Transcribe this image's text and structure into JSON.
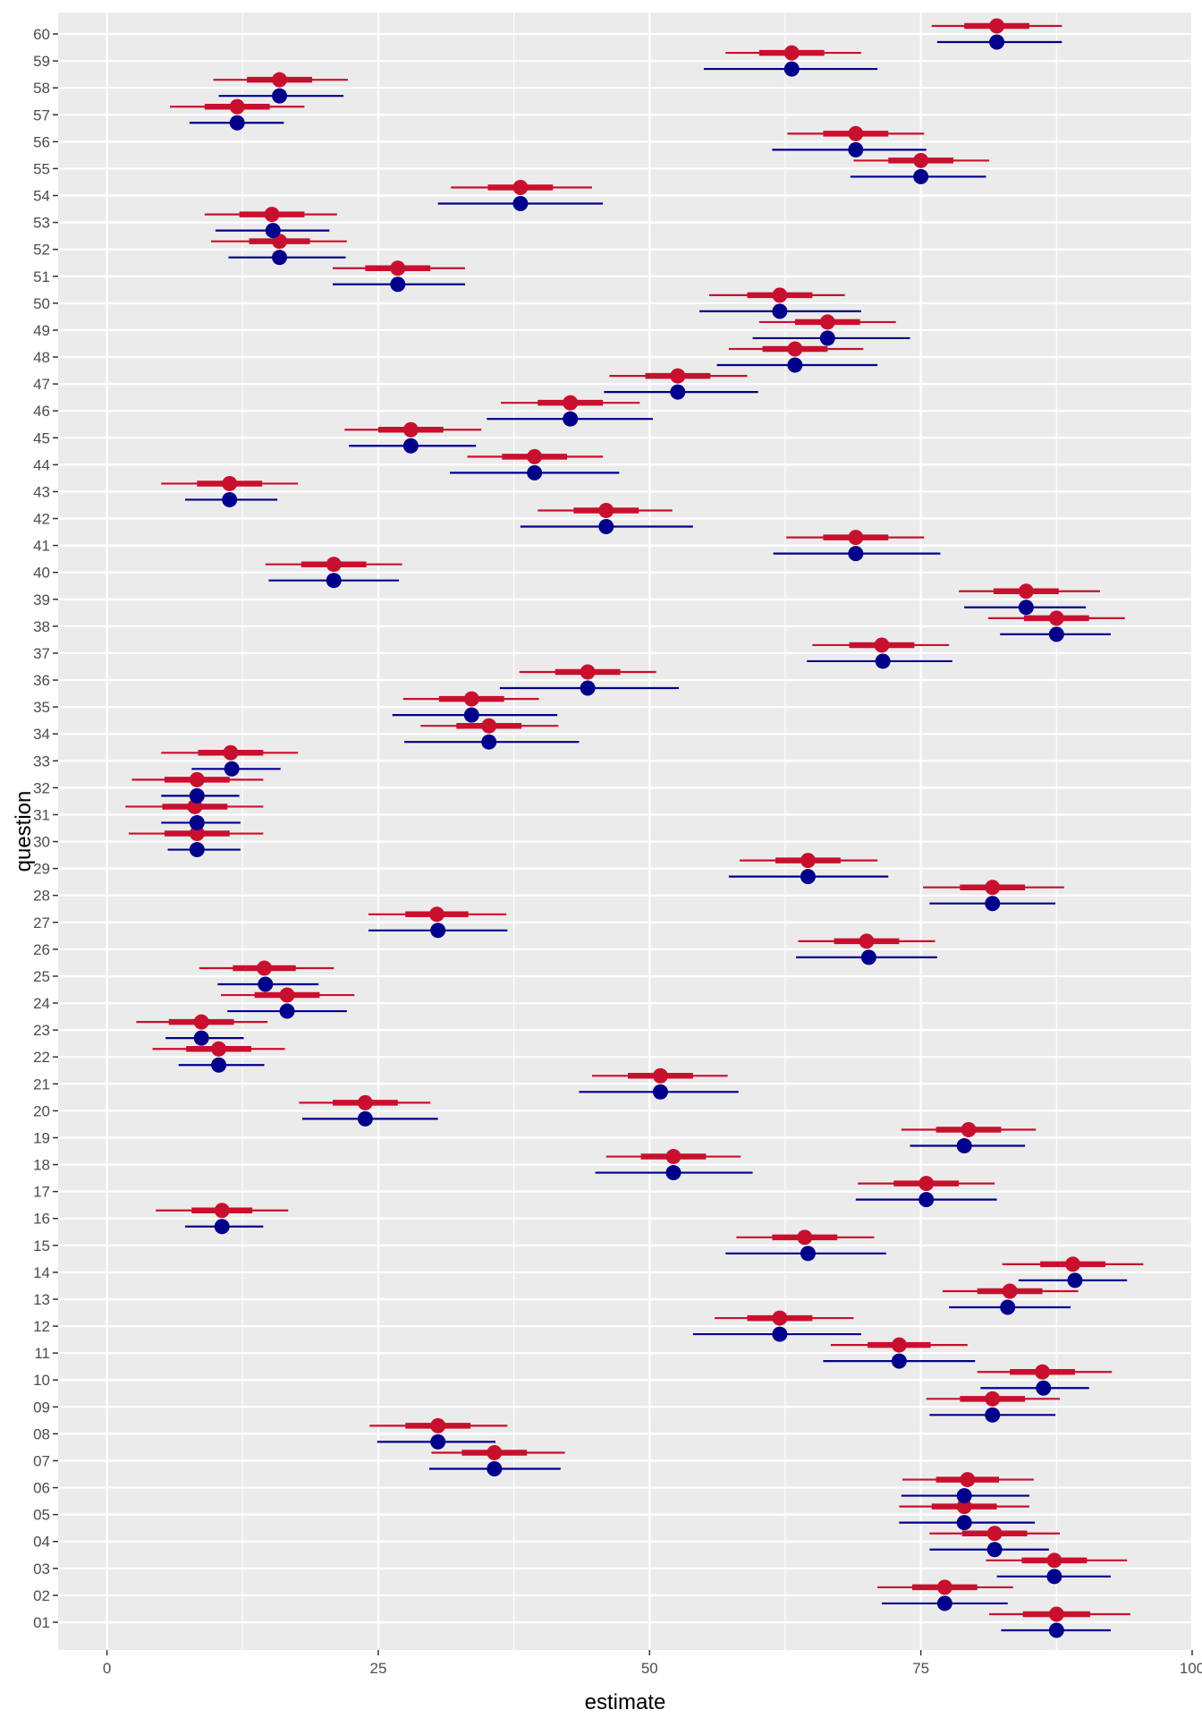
{
  "chart_data": {
    "type": "scatter",
    "title": "",
    "xlabel": "estimate",
    "ylabel": "question",
    "xlim": [
      -4.5,
      100
    ],
    "x_ticks": [
      0,
      25,
      50,
      75,
      100
    ],
    "grid": true,
    "legend": "none",
    "categories": [
      "01",
      "02",
      "03",
      "04",
      "05",
      "06",
      "07",
      "08",
      "09",
      "10",
      "11",
      "12",
      "13",
      "14",
      "15",
      "16",
      "17",
      "18",
      "19",
      "20",
      "21",
      "22",
      "23",
      "24",
      "25",
      "26",
      "27",
      "28",
      "29",
      "30",
      "31",
      "32",
      "33",
      "34",
      "35",
      "36",
      "37",
      "38",
      "39",
      "40",
      "41",
      "42",
      "43",
      "44",
      "45",
      "46",
      "47",
      "48",
      "49",
      "50",
      "51",
      "52",
      "53",
      "54",
      "55",
      "56",
      "57",
      "58",
      "59",
      "60"
    ],
    "series": [
      {
        "color": "#c8102e",
        "estimates": [
          87.5,
          77.2,
          87.3,
          81.8,
          79.0,
          79.3,
          35.7,
          30.5,
          81.6,
          86.2,
          73.0,
          62.0,
          83.2,
          89.0,
          64.3,
          10.6,
          75.5,
          52.2,
          79.4,
          23.8,
          51.0,
          10.3,
          8.7,
          16.6,
          14.5,
          70.0,
          30.4,
          81.6,
          64.6,
          8.3,
          8.1,
          8.3,
          11.4,
          35.2,
          33.6,
          44.3,
          71.4,
          87.5,
          84.7,
          20.9,
          69.0,
          46.0,
          11.3,
          39.4,
          28.0,
          42.7,
          52.6,
          63.4,
          66.4,
          62.0,
          26.8,
          15.9,
          15.2,
          38.1,
          75.0,
          69.0,
          12.0,
          15.9,
          63.1,
          82.0
        ],
        "inner": [
          [
            84.4,
            90.6
          ],
          [
            74.2,
            80.2
          ],
          [
            84.3,
            90.3
          ],
          [
            78.8,
            84.8
          ],
          [
            76.0,
            82.0
          ],
          [
            76.4,
            82.2
          ],
          [
            32.7,
            38.7
          ],
          [
            27.5,
            33.5
          ],
          [
            78.6,
            84.6
          ],
          [
            83.2,
            89.2
          ],
          [
            70.1,
            75.9
          ],
          [
            59.0,
            65.0
          ],
          [
            80.2,
            86.2
          ],
          [
            86.0,
            92.0
          ],
          [
            61.3,
            67.3
          ],
          [
            7.8,
            13.4
          ],
          [
            72.5,
            78.5
          ],
          [
            49.2,
            55.2
          ],
          [
            76.4,
            82.4
          ],
          [
            20.8,
            26.8
          ],
          [
            48.0,
            54.0
          ],
          [
            7.3,
            13.3
          ],
          [
            5.7,
            11.7
          ],
          [
            13.6,
            19.6
          ],
          [
            11.6,
            17.4
          ],
          [
            67.0,
            73.0
          ],
          [
            27.5,
            33.3
          ],
          [
            78.6,
            84.6
          ],
          [
            61.6,
            67.6
          ],
          [
            5.3,
            11.3
          ],
          [
            5.1,
            11.1
          ],
          [
            5.3,
            11.3
          ],
          [
            8.4,
            14.4
          ],
          [
            32.2,
            38.2
          ],
          [
            30.6,
            36.6
          ],
          [
            41.3,
            47.3
          ],
          [
            68.4,
            74.4
          ],
          [
            84.5,
            90.5
          ],
          [
            81.7,
            87.7
          ],
          [
            17.9,
            23.9
          ],
          [
            66.0,
            72.0
          ],
          [
            43.0,
            49.0
          ],
          [
            8.3,
            14.3
          ],
          [
            36.4,
            42.4
          ],
          [
            25.0,
            31.0
          ],
          [
            39.7,
            45.7
          ],
          [
            49.6,
            55.6
          ],
          [
            60.4,
            66.4
          ],
          [
            63.4,
            69.4
          ],
          [
            59.0,
            65.0
          ],
          [
            23.8,
            29.8
          ],
          [
            13.1,
            18.7
          ],
          [
            12.2,
            18.2
          ],
          [
            35.1,
            41.1
          ],
          [
            72.0,
            78.0
          ],
          [
            66.0,
            72.0
          ],
          [
            9.0,
            15.0
          ],
          [
            12.9,
            18.9
          ],
          [
            60.1,
            66.1
          ],
          [
            79.0,
            85.0
          ]
        ],
        "outer": [
          [
            81.3,
            94.3
          ],
          [
            71.0,
            83.5
          ],
          [
            81.0,
            94.0
          ],
          [
            75.8,
            87.8
          ],
          [
            73.0,
            85.0
          ],
          [
            73.3,
            85.4
          ],
          [
            29.9,
            42.2
          ],
          [
            24.2,
            36.9
          ],
          [
            75.5,
            87.8
          ],
          [
            80.2,
            92.6
          ],
          [
            66.7,
            79.3
          ],
          [
            56.0,
            68.8
          ],
          [
            77.0,
            89.5
          ],
          [
            82.5,
            95.5
          ],
          [
            58.0,
            70.7
          ],
          [
            4.5,
            16.7
          ],
          [
            69.2,
            81.8
          ],
          [
            46.0,
            58.4
          ],
          [
            73.2,
            85.6
          ],
          [
            17.7,
            29.8
          ],
          [
            44.7,
            57.2
          ],
          [
            4.2,
            16.4
          ],
          [
            2.7,
            14.8
          ],
          [
            10.5,
            22.8
          ],
          [
            8.5,
            20.9
          ],
          [
            63.7,
            76.3
          ],
          [
            24.1,
            36.8
          ],
          [
            75.2,
            88.2
          ],
          [
            58.3,
            71.0
          ],
          [
            2.0,
            14.4
          ],
          [
            1.7,
            14.4
          ],
          [
            2.3,
            14.4
          ],
          [
            5.0,
            17.6
          ],
          [
            28.9,
            41.6
          ],
          [
            27.3,
            39.8
          ],
          [
            38.0,
            50.6
          ],
          [
            65.0,
            77.6
          ],
          [
            81.2,
            93.8
          ],
          [
            78.5,
            91.5
          ],
          [
            14.6,
            27.2
          ],
          [
            62.6,
            75.3
          ],
          [
            39.7,
            52.1
          ],
          [
            5.0,
            17.6
          ],
          [
            33.2,
            45.7
          ],
          [
            21.9,
            34.5
          ],
          [
            36.3,
            49.1
          ],
          [
            46.3,
            59.0
          ],
          [
            57.3,
            69.7
          ],
          [
            60.1,
            72.7
          ],
          [
            55.5,
            68.0
          ],
          [
            20.8,
            33.0
          ],
          [
            9.6,
            22.1
          ],
          [
            9.0,
            21.2
          ],
          [
            31.7,
            44.7
          ],
          [
            68.8,
            81.3
          ],
          [
            62.7,
            75.3
          ],
          [
            5.8,
            18.2
          ],
          [
            9.8,
            22.2
          ],
          [
            57.0,
            69.5
          ],
          [
            76.0,
            88.0
          ]
        ]
      },
      {
        "color": "#00008b",
        "estimates": [
          87.5,
          77.2,
          87.3,
          81.8,
          79.0,
          79.0,
          35.7,
          30.5,
          81.6,
          86.3,
          73.0,
          62.0,
          83.0,
          89.2,
          64.6,
          10.6,
          75.5,
          52.2,
          79.0,
          23.8,
          51.0,
          10.3,
          8.7,
          16.6,
          14.6,
          70.2,
          30.5,
          81.6,
          64.6,
          8.3,
          8.3,
          8.3,
          11.5,
          35.2,
          33.6,
          44.3,
          71.5,
          87.5,
          84.7,
          20.9,
          69.0,
          46.0,
          11.3,
          39.4,
          28.0,
          42.7,
          52.6,
          63.4,
          66.4,
          62.0,
          26.8,
          15.9,
          15.3,
          38.1,
          75.0,
          69.0,
          12.0,
          15.9,
          63.1,
          82.0
        ],
        "outer": [
          [
            82.4,
            92.5
          ],
          [
            71.4,
            83.0
          ],
          [
            82.0,
            92.5
          ],
          [
            75.8,
            86.8
          ],
          [
            73.0,
            85.5
          ],
          [
            73.2,
            85.0
          ],
          [
            29.7,
            41.8
          ],
          [
            24.9,
            35.8
          ],
          [
            75.8,
            87.4
          ],
          [
            80.5,
            90.5
          ],
          [
            66.0,
            80.0
          ],
          [
            54.0,
            69.5
          ],
          [
            77.6,
            88.8
          ],
          [
            84.0,
            94.0
          ],
          [
            57.0,
            71.8
          ],
          [
            7.2,
            14.4
          ],
          [
            69.0,
            82.0
          ],
          [
            45.0,
            59.5
          ],
          [
            74.0,
            84.6
          ],
          [
            18.0,
            30.5
          ],
          [
            43.5,
            58.2
          ],
          [
            6.6,
            14.5
          ],
          [
            5.4,
            12.6
          ],
          [
            11.1,
            22.1
          ],
          [
            10.2,
            19.5
          ],
          [
            63.5,
            76.5
          ],
          [
            24.1,
            36.9
          ],
          [
            75.8,
            87.4
          ],
          [
            57.3,
            72.0
          ],
          [
            5.6,
            12.3
          ],
          [
            5.0,
            12.3
          ],
          [
            5.0,
            12.2
          ],
          [
            7.8,
            16.0
          ],
          [
            27.4,
            43.5
          ],
          [
            26.3,
            41.5
          ],
          [
            36.2,
            52.7
          ],
          [
            64.5,
            77.9
          ],
          [
            82.3,
            92.5
          ],
          [
            79.0,
            90.2
          ],
          [
            14.9,
            26.9
          ],
          [
            61.4,
            76.8
          ],
          [
            38.1,
            54.0
          ],
          [
            7.2,
            15.7
          ],
          [
            31.6,
            47.2
          ],
          [
            22.3,
            34.0
          ],
          [
            35.0,
            50.3
          ],
          [
            45.8,
            60.0
          ],
          [
            56.2,
            71.0
          ],
          [
            59.5,
            74.0
          ],
          [
            54.6,
            69.5
          ],
          [
            20.8,
            33.0
          ],
          [
            11.2,
            22.0
          ],
          [
            10.0,
            20.5
          ],
          [
            30.5,
            45.7
          ],
          [
            68.5,
            81.0
          ],
          [
            61.3,
            75.5
          ],
          [
            7.6,
            16.3
          ],
          [
            10.3,
            21.8
          ],
          [
            55.0,
            71.0
          ],
          [
            76.5,
            88.0
          ]
        ]
      }
    ]
  }
}
